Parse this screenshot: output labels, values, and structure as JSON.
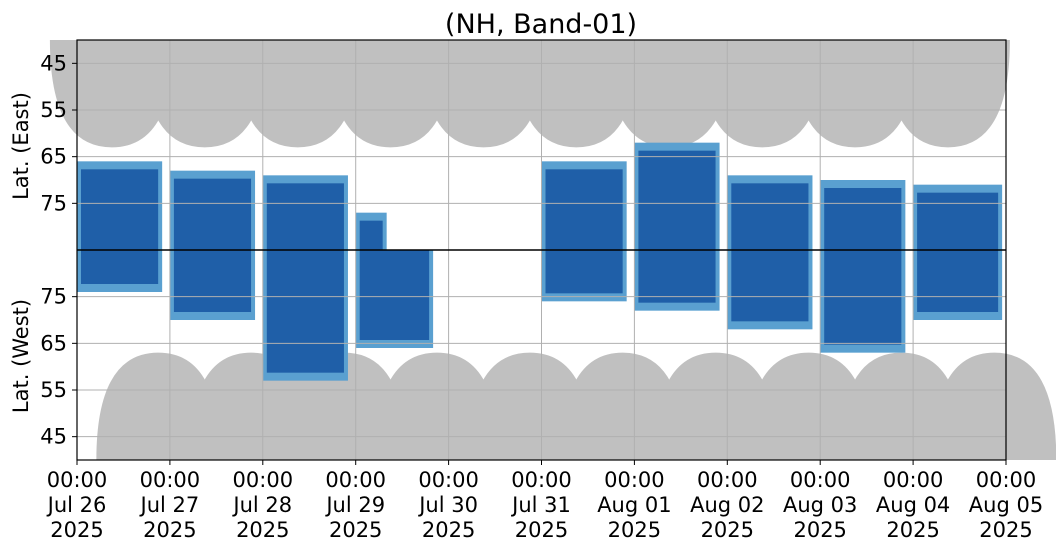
{
  "chart_data": {
    "type": "heatmap",
    "title": "(NH, Band-01)",
    "ylabel_top": "Lat. (East)",
    "ylabel_bottom": "Lat. (West)",
    "y_ticks_top": [
      45,
      55,
      65,
      75
    ],
    "y_ticks_bottom": [
      75,
      65,
      55,
      45
    ],
    "ylim_top": [
      40,
      85
    ],
    "ylim_bottom": [
      85,
      40
    ],
    "x_ticks": [
      {
        "time": "00:00",
        "date": "Jul 26",
        "year": "2025"
      },
      {
        "time": "00:00",
        "date": "Jul 27",
        "year": "2025"
      },
      {
        "time": "00:00",
        "date": "Jul 28",
        "year": "2025"
      },
      {
        "time": "00:00",
        "date": "Jul 29",
        "year": "2025"
      },
      {
        "time": "00:00",
        "date": "Jul 30",
        "year": "2025"
      },
      {
        "time": "00:00",
        "date": "Jul 31",
        "year": "2025"
      },
      {
        "time": "00:00",
        "date": "Aug 01",
        "year": "2025"
      },
      {
        "time": "00:00",
        "date": "Aug 02",
        "year": "2025"
      },
      {
        "time": "00:00",
        "date": "Aug 03",
        "year": "2025"
      },
      {
        "time": "00:00",
        "date": "Aug 04",
        "year": "2025"
      },
      {
        "time": "00:00",
        "date": "Aug 05",
        "year": "2025"
      }
    ],
    "grid": true,
    "colors": {
      "observed": "#1f5fa8",
      "observed_light": "#5aa0d0",
      "no_coverage": "#c0c0c0",
      "grid": "#b0b0b0"
    },
    "no_coverage_top": [
      {
        "center": "2025-07-26 09:00",
        "min_lat": 63
      },
      {
        "center": "2025-07-27 09:00",
        "min_lat": 63
      },
      {
        "center": "2025-07-28 09:00",
        "min_lat": 63
      },
      {
        "center": "2025-07-29 09:00",
        "min_lat": 63
      },
      {
        "center": "2025-07-30 09:00",
        "min_lat": 63
      },
      {
        "center": "2025-07-31 09:00",
        "min_lat": 63
      },
      {
        "center": "2025-08-01 09:00",
        "min_lat": 63
      },
      {
        "center": "2025-08-02 09:00",
        "min_lat": 63
      },
      {
        "center": "2025-08-03 09:00",
        "min_lat": 63
      },
      {
        "center": "2025-08-04 09:00",
        "min_lat": 63
      }
    ],
    "no_coverage_bottom": [
      {
        "center": "2025-07-26 21:00",
        "min_lat": 63
      },
      {
        "center": "2025-07-27 21:00",
        "min_lat": 63
      },
      {
        "center": "2025-07-28 21:00",
        "min_lat": 63
      },
      {
        "center": "2025-07-29 21:00",
        "min_lat": 63
      },
      {
        "center": "2025-07-30 21:00",
        "min_lat": 63
      },
      {
        "center": "2025-07-31 21:00",
        "min_lat": 63
      },
      {
        "center": "2025-08-01 21:00",
        "min_lat": 63
      },
      {
        "center": "2025-08-02 21:00",
        "min_lat": 63
      },
      {
        "center": "2025-08-03 21:00",
        "min_lat": 63
      },
      {
        "center": "2025-08-04 21:00",
        "min_lat": 63
      }
    ],
    "observed_regions": [
      {
        "hemisphere": "east",
        "start": "2025-07-26 00:00",
        "end": "2025-07-26 22:00",
        "lat_min": 66,
        "lat_max": 85
      },
      {
        "hemisphere": "east",
        "start": "2025-07-27 00:00",
        "end": "2025-07-27 22:00",
        "lat_min": 68,
        "lat_max": 85
      },
      {
        "hemisphere": "east",
        "start": "2025-07-28 00:00",
        "end": "2025-07-28 22:00",
        "lat_min": 69,
        "lat_max": 85
      },
      {
        "hemisphere": "east",
        "start": "2025-07-29 00:00",
        "end": "2025-07-29 08:00",
        "lat_min": 77,
        "lat_max": 85
      },
      {
        "hemisphere": "east",
        "start": "2025-07-31 00:00",
        "end": "2025-07-31 22:00",
        "lat_min": 66,
        "lat_max": 85
      },
      {
        "hemisphere": "east",
        "start": "2025-08-01 00:00",
        "end": "2025-08-01 22:00",
        "lat_min": 62,
        "lat_max": 85
      },
      {
        "hemisphere": "east",
        "start": "2025-08-02 00:00",
        "end": "2025-08-02 22:00",
        "lat_min": 69,
        "lat_max": 85
      },
      {
        "hemisphere": "east",
        "start": "2025-08-03 00:00",
        "end": "2025-08-03 22:00",
        "lat_min": 70,
        "lat_max": 85
      },
      {
        "hemisphere": "east",
        "start": "2025-08-04 00:00",
        "end": "2025-08-04 23:00",
        "lat_min": 71,
        "lat_max": 85
      },
      {
        "hemisphere": "west",
        "start": "2025-07-26 00:00",
        "end": "2025-07-26 22:00",
        "lat_min": 76,
        "lat_max": 85
      },
      {
        "hemisphere": "west",
        "start": "2025-07-27 00:00",
        "end": "2025-07-27 22:00",
        "lat_min": 70,
        "lat_max": 85
      },
      {
        "hemisphere": "west",
        "start": "2025-07-28 00:00",
        "end": "2025-07-28 22:00",
        "lat_min": 57,
        "lat_max": 85
      },
      {
        "hemisphere": "west",
        "start": "2025-07-29 00:00",
        "end": "2025-07-29 20:00",
        "lat_min": 64,
        "lat_max": 85
      },
      {
        "hemisphere": "west",
        "start": "2025-07-31 00:00",
        "end": "2025-07-31 22:00",
        "lat_min": 74,
        "lat_max": 85
      },
      {
        "hemisphere": "west",
        "start": "2025-08-01 00:00",
        "end": "2025-08-01 22:00",
        "lat_min": 72,
        "lat_max": 85
      },
      {
        "hemisphere": "west",
        "start": "2025-08-02 00:00",
        "end": "2025-08-02 22:00",
        "lat_min": 68,
        "lat_max": 85
      },
      {
        "hemisphere": "west",
        "start": "2025-08-03 00:00",
        "end": "2025-08-03 22:00",
        "lat_min": 63,
        "lat_max": 85
      },
      {
        "hemisphere": "west",
        "start": "2025-08-04 00:00",
        "end": "2025-08-04 23:00",
        "lat_min": 70,
        "lat_max": 85
      }
    ]
  }
}
